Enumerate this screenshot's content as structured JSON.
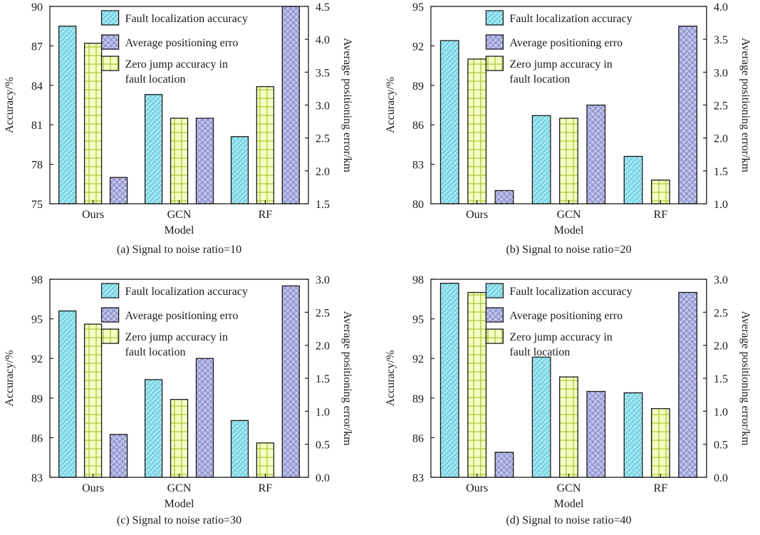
{
  "legend": {
    "items": [
      {
        "name": "Fault localization accuracy",
        "lines": [
          "Fault localization accuracy"
        ],
        "color": "#7fd8e6",
        "pattern": "diag"
      },
      {
        "name": "Average positioning erro",
        "lines": [
          "Average positioning erro"
        ],
        "color": "#9a9cd6",
        "pattern": "cross"
      },
      {
        "name": "Zero jump accuracy in fault location",
        "lines": [
          "Zero jump accuracy in",
          "fault location"
        ],
        "color": "#f6ffc2",
        "pattern": "grid"
      }
    ]
  },
  "chart_data": [
    {
      "type": "bar",
      "caption": "(a) Signal to noise ratio=10",
      "categories": [
        "Ours",
        "GCN",
        "RF"
      ],
      "xlabel": "Model",
      "ylabel": "Accuracy/%",
      "y2label": "Average positioning error/km",
      "ylim": [
        75,
        90
      ],
      "yticks": [
        "75",
        "78",
        "81",
        "84",
        "87",
        "90"
      ],
      "y2lim": [
        1.5,
        4.5
      ],
      "y2ticks": [
        "1.5",
        "2.0",
        "2.5",
        "3.0",
        "3.5",
        "4.0",
        "4.5"
      ],
      "series": [
        {
          "name": "Fault localization accuracy",
          "axis": "left",
          "values": [
            88.5,
            83.3,
            80.1
          ]
        },
        {
          "name": "Zero jump accuracy in fault location",
          "axis": "left",
          "values": [
            87.2,
            81.5,
            83.9
          ]
        },
        {
          "name": "Average positioning erro",
          "axis": "right",
          "values": [
            1.9,
            2.8,
            4.5
          ]
        }
      ]
    },
    {
      "type": "bar",
      "caption": "(b) Signal to noise ratio=20",
      "categories": [
        "Ours",
        "GCN",
        "RF"
      ],
      "xlabel": "Model",
      "ylabel": "Accuracy/%",
      "y2label": "Average positioning error/km",
      "ylim": [
        80,
        95
      ],
      "yticks": [
        "80",
        "83",
        "86",
        "89",
        "92",
        "95"
      ],
      "y2lim": [
        1.0,
        4.0
      ],
      "y2ticks": [
        "1.0",
        "1.5",
        "2.0",
        "2.5",
        "3.0",
        "3.5",
        "4.0"
      ],
      "series": [
        {
          "name": "Fault localization accuracy",
          "axis": "left",
          "values": [
            92.4,
            86.7,
            83.6
          ]
        },
        {
          "name": "Zero jump accuracy in fault location",
          "axis": "left",
          "values": [
            91.0,
            86.5,
            81.8
          ]
        },
        {
          "name": "Average positioning erro",
          "axis": "right",
          "values": [
            1.2,
            2.5,
            3.7
          ]
        }
      ]
    },
    {
      "type": "bar",
      "caption": "(c) Signal to noise ratio=30",
      "categories": [
        "Ours",
        "GCN",
        "RF"
      ],
      "xlabel": "Model",
      "ylabel": "Accuracy/%",
      "y2label": "Average positioning error/km",
      "ylim": [
        83,
        98
      ],
      "yticks": [
        "83",
        "86",
        "89",
        "92",
        "95",
        "98"
      ],
      "y2lim": [
        0.0,
        3.0
      ],
      "y2ticks": [
        "0.0",
        "0.5",
        "1.0",
        "1.5",
        "2.0",
        "2.5",
        "3.0"
      ],
      "series": [
        {
          "name": "Fault localization accuracy",
          "axis": "left",
          "values": [
            95.6,
            90.4,
            87.3
          ]
        },
        {
          "name": "Zero jump accuracy in fault location",
          "axis": "left",
          "values": [
            94.6,
            88.9,
            85.6
          ]
        },
        {
          "name": "Average positioning erro",
          "axis": "right",
          "values": [
            0.65,
            1.8,
            2.9
          ]
        }
      ]
    },
    {
      "type": "bar",
      "caption": "(d) Signal to noise ratio=40",
      "categories": [
        "Ours",
        "GCN",
        "RF"
      ],
      "xlabel": "Model",
      "ylabel": "Accuracy/%",
      "y2label": "Average positioning error/km",
      "ylim": [
        83,
        98
      ],
      "yticks": [
        "83",
        "86",
        "89",
        "92",
        "95",
        "98"
      ],
      "y2lim": [
        0.0,
        3.0
      ],
      "y2ticks": [
        "0.0",
        "0.5",
        "1.0",
        "1.5",
        "2.0",
        "2.5",
        "3.0"
      ],
      "series": [
        {
          "name": "Fault localization accuracy",
          "axis": "left",
          "values": [
            97.7,
            92.1,
            89.4
          ]
        },
        {
          "name": "Zero jump accuracy in fault location",
          "axis": "left",
          "values": [
            97.0,
            90.6,
            88.2
          ]
        },
        {
          "name": "Average positioning erro",
          "axis": "right",
          "values": [
            0.38,
            1.3,
            2.8
          ]
        }
      ]
    }
  ]
}
